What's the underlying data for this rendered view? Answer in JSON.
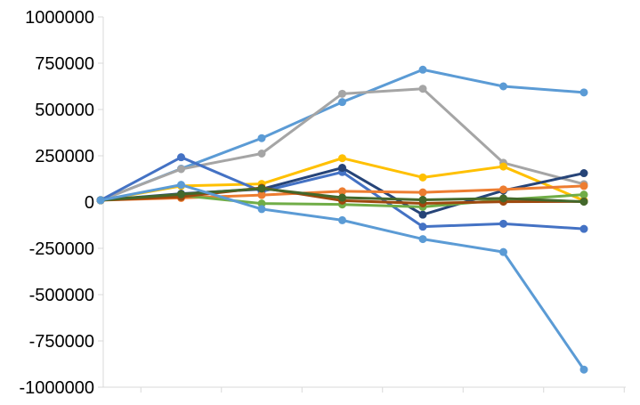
{
  "chart_data": {
    "type": "line",
    "title": "",
    "xlabel": "",
    "ylabel": "",
    "ylim": [
      -1000000,
      1000000
    ],
    "yticks": [
      1000000,
      750000,
      500000,
      250000,
      0,
      -250000,
      -500000,
      -750000,
      -1000000
    ],
    "ytick_labels": [
      "1000000",
      "750000",
      "500000",
      "250000",
      "0",
      "-250000",
      "-500000",
      "-750000",
      "-1000000"
    ],
    "x": [
      1,
      2,
      3,
      4,
      5,
      6,
      7
    ],
    "grid": {
      "vertical": false,
      "horizontal": false
    },
    "legend": "none",
    "series": [
      {
        "color": "#5b9bd5",
        "values": [
          10000,
          180000,
          345000,
          540000,
          715000,
          625000,
          592000
        ]
      },
      {
        "color": "#a5a5a5",
        "values": [
          10000,
          178000,
          262000,
          585000,
          612000,
          212000,
          97000
        ]
      },
      {
        "color": "#ffc000",
        "values": [
          10000,
          87000,
          98000,
          237000,
          133000,
          192000,
          8000
        ]
      },
      {
        "color": "#4472c4",
        "values": [
          10000,
          242000,
          57000,
          162000,
          -133000,
          -117000,
          -145000
        ]
      },
      {
        "color": "#264478",
        "values": [
          10000,
          45000,
          70000,
          185000,
          -68000,
          62000,
          156000
        ]
      },
      {
        "color": "#ed7d31",
        "values": [
          10000,
          22000,
          38000,
          58000,
          52000,
          68000,
          87000
        ]
      },
      {
        "color": "#70ad47",
        "values": [
          10000,
          36000,
          -8000,
          -13000,
          -26000,
          12000,
          40000
        ]
      },
      {
        "color": "#9e480e",
        "values": [
          10000,
          28000,
          77000,
          8000,
          -7000,
          2000,
          3000
        ]
      },
      {
        "color": "#43682b",
        "values": [
          10000,
          42000,
          73000,
          24000,
          12000,
          20000,
          2000
        ]
      },
      {
        "color": "#5b9bd5",
        "values": [
          10000,
          93000,
          -38000,
          -98000,
          -200000,
          -270000,
          -905000
        ]
      }
    ]
  },
  "colors": {
    "axis": "#d9d9d9",
    "tick_text": "#000000"
  }
}
